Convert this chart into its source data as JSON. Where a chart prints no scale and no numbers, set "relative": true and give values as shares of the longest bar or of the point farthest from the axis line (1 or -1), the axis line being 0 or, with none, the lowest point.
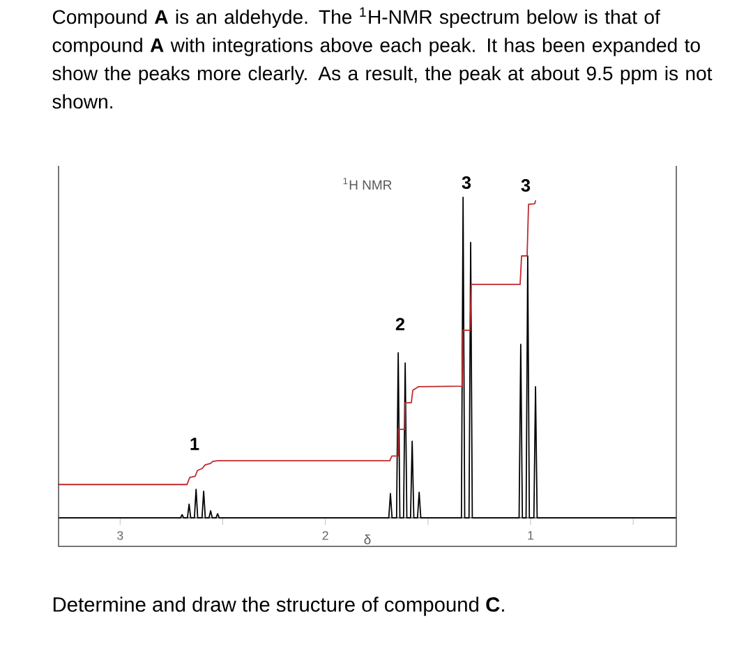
{
  "chart_data": {
    "type": "line",
    "title": "Compound **A** is an aldehyde.  The $^{1}$H-NMR spectrum below is that of compound **A** with integrations above each peak.  It has been expanded to show the peaks more clearly.  As a result, the peak at about 9.5 ppm is not shown.",
    "subtitle": "$^{1}$H NMR",
    "xlabel": "δ",
    "relative": true,
    "tick_labels": "x",
    "xlim": [
      3.3,
      0.29
    ],
    "xticks": [
      3,
      {
        "value": 2.5,
        "label": null
      },
      2,
      {
        "value": 1.5,
        "label": null
      },
      1,
      {
        "value": 0.5,
        "label": null
      }
    ],
    "annotations": [
      "1",
      "2",
      "3",
      "3",
      "Determine and draw the structure of compound **C**."
    ],
    "series": [
      {
        "color": "#000000",
        "x": [
          3.3,
          2.706,
          2.698,
          2.69,
          2.672,
          2.664,
          2.656,
          2.638,
          2.63,
          2.622,
          2.601,
          2.593,
          2.585,
          2.567,
          2.559,
          2.551,
          2.533,
          2.525,
          2.517,
          1.691,
          1.683,
          1.675,
          1.653,
          1.645,
          1.637,
          1.619,
          1.611,
          1.603,
          1.585,
          1.577,
          1.569,
          1.551,
          1.543,
          1.535,
          1.337,
          1.329,
          1.321,
          1.3,
          1.292,
          1.284,
          1.056,
          1.048,
          1.04,
          1.022,
          1.014,
          1.006,
          0.984,
          0.976,
          0.968,
          0.29
        ],
        "values": [
          0,
          0,
          0.01,
          0,
          0,
          0.043,
          0,
          0,
          0.089,
          0,
          0,
          0.083,
          0,
          0,
          0.022,
          0,
          0,
          0.013,
          0,
          0,
          0.076,
          0,
          0,
          0.515,
          0,
          0,
          0.483,
          0,
          0,
          0.239,
          0,
          0,
          0.08,
          0,
          0,
          1.0,
          0,
          0,
          0.859,
          0,
          0,
          0.541,
          0,
          0,
          0.817,
          0,
          0,
          0.409,
          0,
          0
        ]
      },
      {
        "color": "#c0282a",
        "x": [
          3.3,
          2.674,
          2.661,
          2.634,
          2.623,
          2.6,
          2.586,
          2.559,
          2.549,
          2.525,
          1.686,
          1.676,
          1.645,
          1.645,
          1.611,
          1.611,
          1.581,
          1.574,
          1.547,
          1.333,
          1.329,
          1.295,
          1.289,
          1.051,
          1.044,
          1.017,
          1.01,
          0.98,
          0.976
        ],
        "values": [
          0.104,
          0.104,
          0.126,
          0.13,
          0.148,
          0.154,
          0.165,
          0.17,
          0.176,
          0.178,
          0.178,
          0.193,
          0.193,
          0.276,
          0.276,
          0.359,
          0.359,
          0.398,
          0.409,
          0.411,
          0.585,
          0.585,
          0.728,
          0.728,
          0.817,
          0.817,
          0.978,
          0.98,
          0.989
        ]
      }
    ]
  }
}
